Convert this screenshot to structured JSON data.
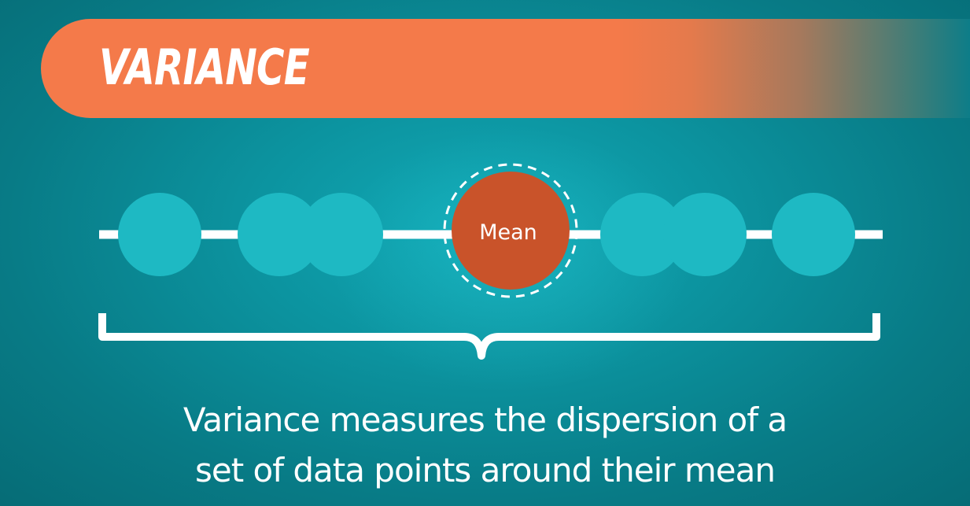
{
  "title": "VARIANCE",
  "mean_label": "Mean",
  "caption": {
    "line1": "Variance measures the dispersion of a",
    "line2": "set of data points around their mean"
  },
  "colors": {
    "background": "#0c939f",
    "banner": "#f47a4a",
    "data_point": "#1eb9c3",
    "mean_point": "#c9532a",
    "line": "#ffffff"
  }
}
